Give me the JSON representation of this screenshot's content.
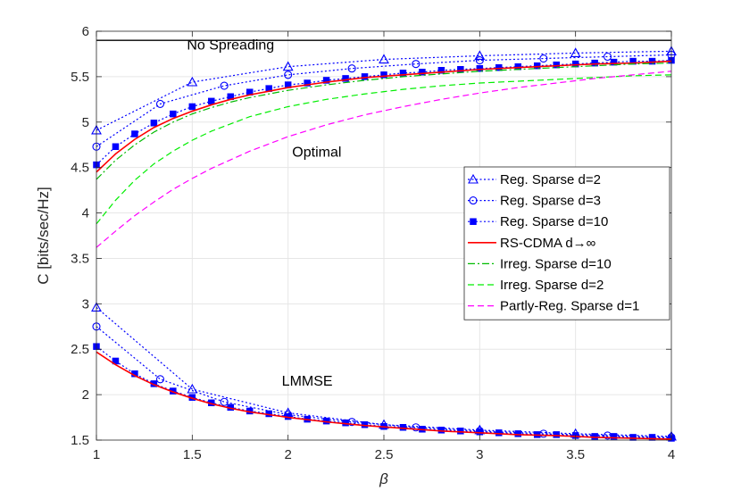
{
  "chart_data": {
    "type": "line",
    "title": "",
    "xlabel": "β",
    "ylabel": "C [bits/sec/Hz]",
    "xlim": [
      1,
      4
    ],
    "ylim": [
      1.5,
      6
    ],
    "grid": true,
    "legend_position": "right-center",
    "x_ticks": [
      1,
      1.5,
      2,
      2.5,
      3,
      3.5,
      4
    ],
    "x_tick_labels": [
      "1",
      "1.5",
      "2",
      "2.5",
      "3",
      "3.5",
      "4"
    ],
    "y_ticks": [
      1.5,
      2,
      2.5,
      3,
      3.5,
      4,
      4.5,
      5,
      5.5,
      6
    ],
    "y_tick_labels": [
      "1.5",
      "2",
      "2.5",
      "3",
      "3.5",
      "4",
      "4.5",
      "5",
      "5.5",
      "6"
    ],
    "annotations": [
      {
        "text": "No Spreading",
        "x": 1.7,
        "y": 5.8
      },
      {
        "text": "Optimal",
        "x": 2.15,
        "y": 4.62
      },
      {
        "text": "LMMSE",
        "x": 2.1,
        "y": 2.1
      }
    ],
    "reference_line": {
      "y": 5.9,
      "color": "#000000"
    },
    "series": [
      {
        "name": "Reg. Sparse d=2",
        "color": "#0000ff",
        "style": "dotted",
        "marker": "triangle",
        "groups": [
          {
            "x": [
              1,
              1.5,
              2,
              2.5,
              3,
              3.5,
              4
            ],
            "y": [
              4.91,
              5.44,
              5.61,
              5.69,
              5.73,
              5.76,
              5.78
            ]
          },
          {
            "x": [
              1,
              1.5,
              2,
              2.5,
              3,
              3.5,
              4
            ],
            "y": [
              2.96,
              2.06,
              1.8,
              1.67,
              1.61,
              1.57,
              1.54
            ]
          }
        ]
      },
      {
        "name": "Reg. Sparse d=3",
        "color": "#0000ff",
        "style": "dotted",
        "marker": "circle",
        "groups": [
          {
            "x": [
              1,
              1.333,
              1.667,
              2,
              2.333,
              2.667,
              3,
              3.333,
              3.667,
              4
            ],
            "y": [
              4.73,
              5.2,
              5.4,
              5.52,
              5.59,
              5.64,
              5.68,
              5.7,
              5.72,
              5.74
            ]
          },
          {
            "x": [
              1,
              1.333,
              1.667,
              2,
              2.333,
              2.667,
              3,
              3.333,
              3.667,
              4
            ],
            "y": [
              2.75,
              2.17,
              1.92,
              1.78,
              1.7,
              1.64,
              1.6,
              1.57,
              1.55,
              1.53
            ]
          }
        ]
      },
      {
        "name": "Reg. Sparse d=10",
        "color": "#0000ff",
        "style": "dotted",
        "marker": "square",
        "groups": [
          {
            "x": [
              1,
              1.1,
              1.2,
              1.3,
              1.4,
              1.5,
              1.6,
              1.7,
              1.8,
              1.9,
              2,
              2.1,
              2.2,
              2.3,
              2.4,
              2.5,
              2.6,
              2.7,
              2.8,
              2.9,
              3,
              3.1,
              3.2,
              3.3,
              3.4,
              3.5,
              3.6,
              3.7,
              3.8,
              3.9,
              4
            ],
            "y": [
              4.53,
              4.73,
              4.87,
              4.99,
              5.09,
              5.17,
              5.23,
              5.28,
              5.33,
              5.37,
              5.41,
              5.43,
              5.46,
              5.48,
              5.5,
              5.52,
              5.54,
              5.55,
              5.57,
              5.58,
              5.59,
              5.6,
              5.61,
              5.62,
              5.63,
              5.64,
              5.65,
              5.66,
              5.67,
              5.67,
              5.68
            ]
          },
          {
            "x": [
              1,
              1.1,
              1.2,
              1.3,
              1.4,
              1.5,
              1.6,
              1.7,
              1.8,
              1.9,
              2,
              2.1,
              2.2,
              2.3,
              2.4,
              2.5,
              2.6,
              2.7,
              2.8,
              2.9,
              3,
              3.1,
              3.2,
              3.3,
              3.4,
              3.5,
              3.6,
              3.7,
              3.8,
              3.9,
              4
            ],
            "y": [
              2.53,
              2.37,
              2.23,
              2.12,
              2.04,
              1.97,
              1.91,
              1.86,
              1.82,
              1.79,
              1.76,
              1.73,
              1.71,
              1.69,
              1.67,
              1.65,
              1.64,
              1.62,
              1.61,
              1.6,
              1.59,
              1.58,
              1.57,
              1.56,
              1.56,
              1.55,
              1.54,
              1.54,
              1.53,
              1.53,
              1.52
            ]
          }
        ]
      },
      {
        "name": "RS-CDMA d→∞",
        "color": "#ff0000",
        "style": "solid",
        "marker": "none",
        "groups": [
          {
            "x": [
              1,
              1.1,
              1.2,
              1.3,
              1.4,
              1.5,
              1.6,
              1.7,
              1.8,
              1.9,
              2,
              2.2,
              2.4,
              2.6,
              2.8,
              3,
              3.2,
              3.4,
              3.6,
              3.8,
              4
            ],
            "y": [
              4.45,
              4.65,
              4.81,
              4.94,
              5.04,
              5.12,
              5.19,
              5.25,
              5.3,
              5.34,
              5.38,
              5.44,
              5.49,
              5.52,
              5.55,
              5.58,
              5.6,
              5.62,
              5.64,
              5.65,
              5.67
            ]
          },
          {
            "x": [
              1,
              1.1,
              1.2,
              1.3,
              1.4,
              1.5,
              1.6,
              1.7,
              1.8,
              1.9,
              2,
              2.2,
              2.4,
              2.6,
              2.8,
              3,
              3.2,
              3.4,
              3.6,
              3.8,
              4
            ],
            "y": [
              2.47,
              2.33,
              2.21,
              2.11,
              2.03,
              1.96,
              1.9,
              1.85,
              1.81,
              1.78,
              1.75,
              1.7,
              1.66,
              1.63,
              1.6,
              1.58,
              1.56,
              1.55,
              1.53,
              1.52,
              1.51
            ]
          }
        ]
      },
      {
        "name": "Irreg. Sparse d=10",
        "color": "#00bb00",
        "style": "dashdot",
        "marker": "none",
        "groups": [
          {
            "x": [
              1,
              1.1,
              1.2,
              1.3,
              1.4,
              1.5,
              1.6,
              1.7,
              1.8,
              1.9,
              2,
              2.2,
              2.4,
              2.6,
              2.8,
              3,
              3.2,
              3.4,
              3.6,
              3.8,
              4
            ],
            "y": [
              4.37,
              4.58,
              4.75,
              4.89,
              5.0,
              5.09,
              5.16,
              5.22,
              5.27,
              5.31,
              5.35,
              5.41,
              5.46,
              5.5,
              5.53,
              5.56,
              5.58,
              5.6,
              5.62,
              5.64,
              5.65
            ]
          }
        ]
      },
      {
        "name": "Irreg. Sparse d=2",
        "color": "#00ee00",
        "style": "dashed",
        "marker": "none",
        "groups": [
          {
            "x": [
              1,
              1.1,
              1.2,
              1.3,
              1.4,
              1.5,
              1.6,
              1.8,
              2,
              2.2,
              2.4,
              2.6,
              2.8,
              3,
              3.2,
              3.4,
              3.6,
              3.8,
              4
            ],
            "y": [
              3.88,
              4.14,
              4.36,
              4.54,
              4.68,
              4.8,
              4.9,
              5.06,
              5.17,
              5.25,
              5.31,
              5.36,
              5.4,
              5.43,
              5.45,
              5.47,
              5.49,
              5.51,
              5.52
            ]
          }
        ]
      },
      {
        "name": "Partly-Reg. Sparse d=1",
        "color": "#ff00ff",
        "style": "dashed",
        "marker": "none",
        "groups": [
          {
            "x": [
              1,
              1.1,
              1.2,
              1.3,
              1.4,
              1.5,
              1.6,
              1.8,
              2,
              2.2,
              2.4,
              2.6,
              2.8,
              3,
              3.2,
              3.4,
              3.6,
              3.8,
              4
            ],
            "y": [
              3.62,
              3.8,
              3.97,
              4.12,
              4.26,
              4.38,
              4.49,
              4.68,
              4.84,
              4.97,
              5.08,
              5.17,
              5.25,
              5.32,
              5.38,
              5.43,
              5.48,
              5.52,
              5.56
            ]
          }
        ]
      }
    ]
  }
}
